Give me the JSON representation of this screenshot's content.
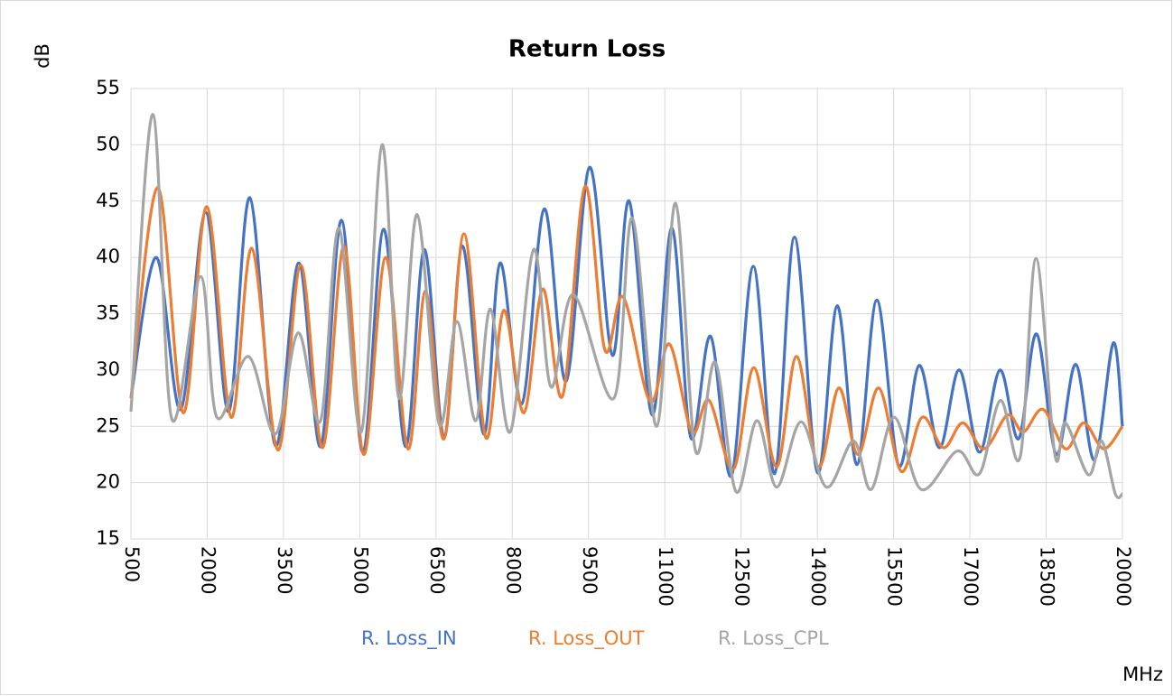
{
  "chart_data": {
    "type": "line",
    "title": "Return Loss",
    "y_label": "dB",
    "x_label": "MHz",
    "xlim": [
      500,
      20000
    ],
    "xticks": [
      500,
      2000,
      3500,
      5000,
      6500,
      8000,
      9500,
      11000,
      12500,
      14000,
      15500,
      17000,
      18500,
      20000
    ],
    "ylim": [
      15,
      55
    ],
    "yticks": [
      15,
      20,
      25,
      30,
      35,
      40,
      45,
      50,
      55
    ],
    "grid": true,
    "legend": "bottom",
    "series": [
      {
        "name": "R. Loss_IN",
        "color": "#4472c4",
        "x": [
          500,
          1000,
          1480,
          1970,
          2420,
          2840,
          3340,
          3800,
          4230,
          4640,
          5060,
          5470,
          5900,
          6270,
          6660,
          7020,
          7440,
          7760,
          8190,
          8630,
          9060,
          9520,
          9970,
          10300,
          10750,
          11140,
          11510,
          11900,
          12310,
          12740,
          13160,
          13550,
          14000,
          14390,
          14780,
          15170,
          15600,
          16000,
          16400,
          16790,
          17190,
          17590,
          17960,
          18310,
          18700,
          19080,
          19450,
          19820,
          20000
        ],
        "values": [
          27.5,
          40,
          26.5,
          44,
          26.3,
          45.3,
          23.3,
          39.5,
          23.2,
          43.3,
          22.7,
          42.5,
          23.2,
          40.7,
          24,
          41,
          24.3,
          39.5,
          27,
          44.3,
          29,
          48,
          31.3,
          45,
          26,
          42.6,
          24,
          33,
          20.6,
          39.2,
          20.8,
          41.8,
          20.9,
          35.7,
          21.6,
          36.2,
          21.5,
          30.4,
          23.1,
          30,
          22.7,
          30,
          23.9,
          33.2,
          22.5,
          30.5,
          22,
          32.4,
          25
        ]
      },
      {
        "name": "R. Loss_OUT",
        "color": "#ed7d31",
        "x": [
          500,
          1030,
          1530,
          1990,
          2470,
          2880,
          3390,
          3840,
          4270,
          4690,
          5080,
          5510,
          5950,
          6290,
          6660,
          7050,
          7480,
          7830,
          8230,
          8600,
          8990,
          9430,
          9820,
          10180,
          10710,
          11090,
          11530,
          11870,
          12350,
          12750,
          13200,
          13590,
          14020,
          14420,
          14800,
          15210,
          15650,
          16060,
          16480,
          16860,
          17280,
          17740,
          18050,
          18440,
          18880,
          19240,
          19630,
          20000
        ],
        "values": [
          27.5,
          46.2,
          26.2,
          44.5,
          25.8,
          40.8,
          22.9,
          39.3,
          23.1,
          41,
          22.5,
          40,
          23,
          37,
          23.9,
          42.1,
          24,
          35.3,
          26.2,
          37.2,
          27.7,
          46.3,
          31.8,
          36.5,
          27.2,
          32.3,
          24.5,
          27.3,
          21.2,
          30.2,
          21.4,
          31.2,
          21.4,
          28.4,
          22.5,
          28.4,
          21,
          25.8,
          23.1,
          25.3,
          23,
          26,
          24.5,
          26.5,
          23,
          25.3,
          23,
          25
        ]
      },
      {
        "name": "R. Loss_CPL",
        "color": "#a5a5a5",
        "x": [
          500,
          930,
          1300,
          1870,
          2190,
          2810,
          3340,
          3790,
          4230,
          4590,
          5030,
          5440,
          5770,
          6130,
          6560,
          6910,
          7280,
          7570,
          7960,
          8420,
          8760,
          9200,
          10000,
          10360,
          10840,
          11210,
          11600,
          11990,
          12400,
          12810,
          13200,
          13680,
          14180,
          14710,
          15060,
          15510,
          16040,
          16750,
          17190,
          17600,
          17990,
          18300,
          18670,
          18880,
          19330,
          19590,
          19860,
          20000
        ],
        "values": [
          26.3,
          52.7,
          25.7,
          38.3,
          25.8,
          31.2,
          24.3,
          33.3,
          25.5,
          42.6,
          24.5,
          50,
          27.5,
          43.8,
          25.2,
          34.3,
          25.5,
          35.4,
          24.5,
          40.7,
          28.5,
          36.7,
          27.5,
          43.5,
          25,
          44.8,
          22.9,
          30.7,
          19.2,
          25.5,
          19.6,
          25.4,
          19.6,
          23.7,
          19.4,
          25.8,
          19.4,
          22.8,
          20.8,
          27.3,
          22.3,
          39.9,
          22.5,
          25.3,
          20.7,
          23.7,
          19,
          19
        ]
      }
    ]
  }
}
